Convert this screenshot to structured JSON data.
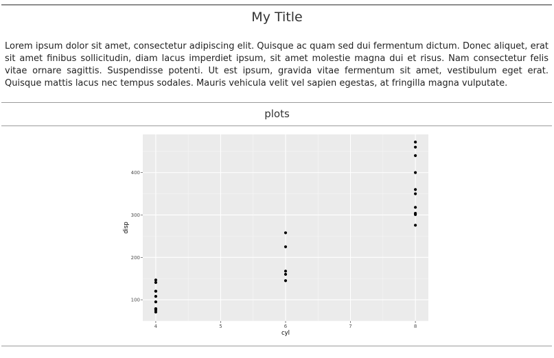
{
  "page": {
    "title": "My Title",
    "paragraph": "Lorem ipsum dolor sit amet, consectetur adipiscing elit. Quisque ac quam sed dui fermentum dictum. Donec aliquet, erat sit amet finibus sollicitudin, diam lacus imperdiet ipsum, sit amet molestie magna dui et risus. Nam consectetur felis vitae ornare sagittis. Suspendisse potenti. Ut est ipsum, gravida vitae fermentum sit amet, vestibulum eget erat. Quisque mattis lacus nec tempus sodales. Mauris vehicula velit vel sapien egestas, at fringilla magna vulputate.",
    "section_header": "plots"
  },
  "chart_data": {
    "type": "scatter",
    "xlabel": "cyl",
    "ylabel": "disp",
    "xlim": [
      3.8,
      8.2
    ],
    "ylim": [
      50,
      490
    ],
    "x_ticks": [
      4,
      5,
      6,
      7,
      8
    ],
    "y_ticks": [
      100,
      200,
      300,
      400
    ],
    "grid": true,
    "panel_color": "#ebebeb",
    "point_color": "#000000",
    "points": [
      [
        4,
        146.7
      ],
      [
        4,
        140.8
      ],
      [
        4,
        120.1
      ],
      [
        4,
        120.3
      ],
      [
        4,
        108.0
      ],
      [
        4,
        95.1
      ],
      [
        4,
        79.0
      ],
      [
        4,
        78.7
      ],
      [
        4,
        75.7
      ],
      [
        4,
        71.1
      ],
      [
        6,
        258.0
      ],
      [
        6,
        225.0
      ],
      [
        6,
        167.6
      ],
      [
        6,
        160.0
      ],
      [
        6,
        145.0
      ],
      [
        8,
        472.0
      ],
      [
        8,
        460.0
      ],
      [
        8,
        440.0
      ],
      [
        8,
        400.0
      ],
      [
        8,
        360.0
      ],
      [
        8,
        350.0
      ],
      [
        8,
        318.0
      ],
      [
        8,
        304.0
      ],
      [
        8,
        301.0
      ],
      [
        8,
        275.8
      ]
    ]
  }
}
